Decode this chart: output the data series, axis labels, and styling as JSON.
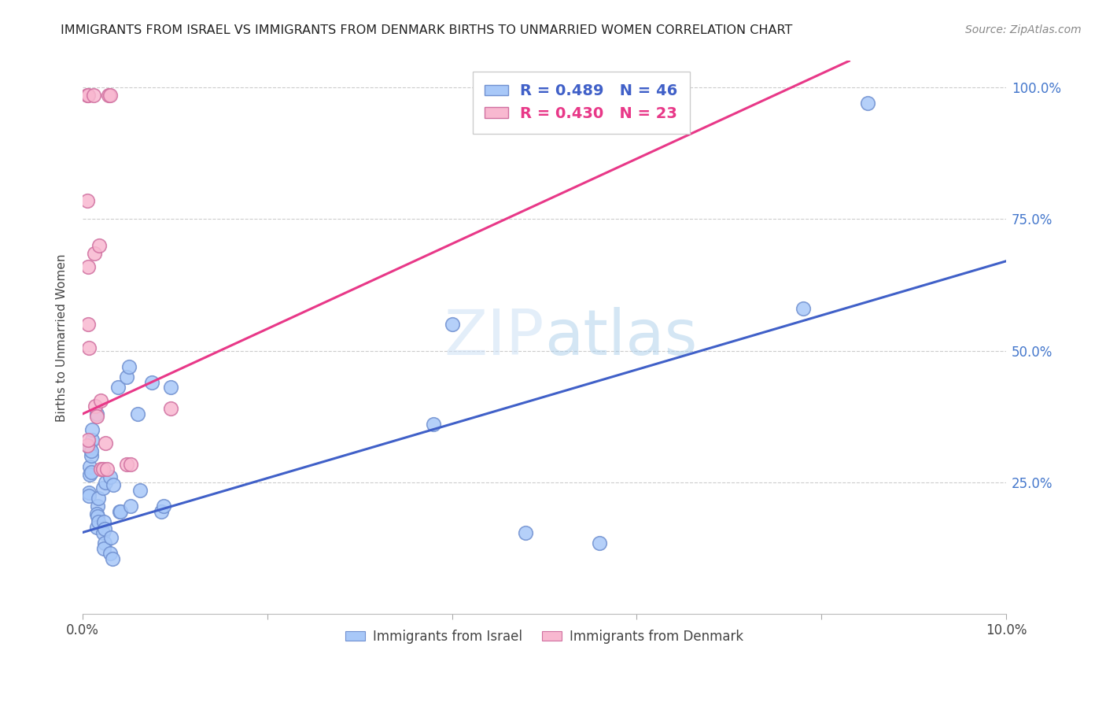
{
  "title": "IMMIGRANTS FROM ISRAEL VS IMMIGRANTS FROM DENMARK BIRTHS TO UNMARRIED WOMEN CORRELATION CHART",
  "source": "Source: ZipAtlas.com",
  "ylabel": "Births to Unmarried Women",
  "legend_bottom": [
    "Immigrants from Israel",
    "Immigrants from Denmark"
  ],
  "israel_color": "#a8c8f8",
  "denmark_color": "#f8b8d0",
  "israel_edge_color": "#7090d0",
  "denmark_edge_color": "#d070a0",
  "israel_line_color": "#4060c8",
  "denmark_line_color": "#e83888",
  "watermark_color": "#ddeeff",
  "israel_points": [
    [
      0.0008,
      0.315
    ],
    [
      0.0008,
      0.28
    ],
    [
      0.0009,
      0.3
    ],
    [
      0.0008,
      0.265
    ],
    [
      0.0007,
      0.23
    ],
    [
      0.0007,
      0.225
    ],
    [
      0.001,
      0.33
    ],
    [
      0.001,
      0.35
    ],
    [
      0.0009,
      0.31
    ],
    [
      0.0009,
      0.27
    ],
    [
      0.0015,
      0.38
    ],
    [
      0.0016,
      0.205
    ],
    [
      0.0015,
      0.19
    ],
    [
      0.0017,
      0.22
    ],
    [
      0.0016,
      0.185
    ],
    [
      0.0015,
      0.165
    ],
    [
      0.0017,
      0.175
    ],
    [
      0.0022,
      0.24
    ],
    [
      0.0023,
      0.175
    ],
    [
      0.0022,
      0.155
    ],
    [
      0.0024,
      0.162
    ],
    [
      0.0025,
      0.25
    ],
    [
      0.0024,
      0.135
    ],
    [
      0.0023,
      0.125
    ],
    [
      0.003,
      0.26
    ],
    [
      0.0031,
      0.145
    ],
    [
      0.003,
      0.115
    ],
    [
      0.0032,
      0.105
    ],
    [
      0.0033,
      0.245
    ],
    [
      0.0038,
      0.43
    ],
    [
      0.004,
      0.195
    ],
    [
      0.0041,
      0.195
    ],
    [
      0.0048,
      0.45
    ],
    [
      0.005,
      0.47
    ],
    [
      0.0052,
      0.205
    ],
    [
      0.006,
      0.38
    ],
    [
      0.0062,
      0.235
    ],
    [
      0.0075,
      0.44
    ],
    [
      0.0085,
      0.195
    ],
    [
      0.0088,
      0.205
    ],
    [
      0.0095,
      0.43
    ],
    [
      0.038,
      0.36
    ],
    [
      0.04,
      0.55
    ],
    [
      0.048,
      0.155
    ],
    [
      0.056,
      0.135
    ],
    [
      0.078,
      0.58
    ],
    [
      0.085,
      0.97
    ]
  ],
  "denmark_points": [
    [
      0.0005,
      0.32
    ],
    [
      0.0006,
      0.33
    ],
    [
      0.0005,
      0.985
    ],
    [
      0.0006,
      0.985
    ],
    [
      0.0005,
      0.785
    ],
    [
      0.0006,
      0.66
    ],
    [
      0.0006,
      0.55
    ],
    [
      0.0007,
      0.505
    ],
    [
      0.0012,
      0.985
    ],
    [
      0.0013,
      0.685
    ],
    [
      0.0014,
      0.395
    ],
    [
      0.0015,
      0.375
    ],
    [
      0.0018,
      0.7
    ],
    [
      0.002,
      0.405
    ],
    [
      0.002,
      0.275
    ],
    [
      0.0022,
      0.275
    ],
    [
      0.0025,
      0.325
    ],
    [
      0.0026,
      0.275
    ],
    [
      0.0028,
      0.985
    ],
    [
      0.003,
      0.985
    ],
    [
      0.0048,
      0.285
    ],
    [
      0.0052,
      0.285
    ],
    [
      0.0095,
      0.39
    ]
  ],
  "israel_line": {
    "x0": 0.0,
    "y0": 0.155,
    "x1": 0.1,
    "y1": 0.67
  },
  "denmark_line": {
    "x0": 0.0,
    "y0": 0.38,
    "x1": 0.083,
    "y1": 1.05
  },
  "xlim": [
    0.0,
    0.1
  ],
  "ylim": [
    0.0,
    1.05
  ],
  "xticks": [
    0.0,
    0.02,
    0.04,
    0.06,
    0.08,
    0.1
  ],
  "xtick_labels_show": [
    "0.0%",
    "",
    "",
    "",
    "",
    "10.0%"
  ],
  "yticks": [
    0.25,
    0.5,
    0.75,
    1.0
  ],
  "ytick_labels": [
    "25.0%",
    "50.0%",
    "75.0%",
    "100.0%"
  ]
}
